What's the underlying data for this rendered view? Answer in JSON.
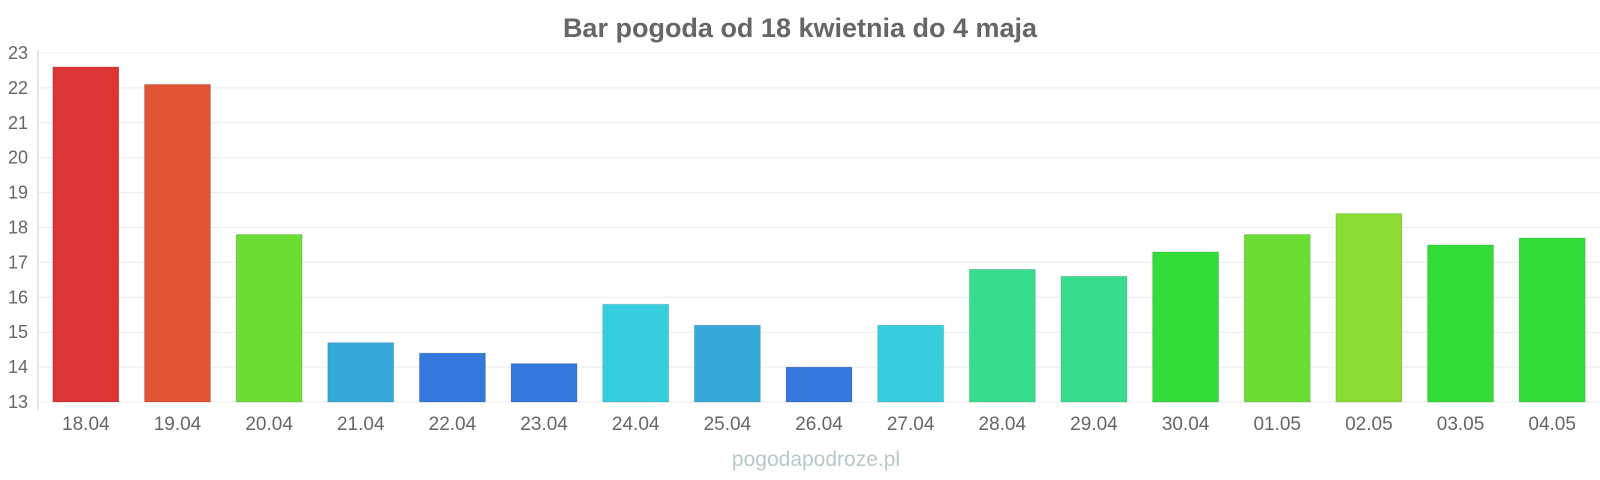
{
  "chart_data": {
    "type": "bar",
    "title": "Bar pogoda od 18 kwietnia do 4 maja",
    "xlabel": "",
    "ylabel": "",
    "ylim": [
      13,
      23
    ],
    "yticks": [
      "13",
      "14",
      "15",
      "16",
      "17",
      "18",
      "19",
      "20",
      "21",
      "22",
      "23"
    ],
    "grid": true,
    "legend": "none",
    "categories": [
      "18.04",
      "19.04",
      "20.04",
      "21.04",
      "22.04",
      "23.04",
      "24.04",
      "25.04",
      "26.04",
      "27.04",
      "28.04",
      "29.04",
      "30.04",
      "01.05",
      "02.05",
      "03.05",
      "04.05"
    ],
    "values": [
      22.6,
      22.1,
      17.8,
      14.7,
      14.4,
      14.1,
      15.8,
      15.2,
      14.0,
      15.2,
      16.8,
      16.6,
      17.3,
      17.8,
      18.4,
      17.5,
      17.7
    ],
    "colors": [
      "#dc3535",
      "#e05436",
      "#6ade35",
      "#36a8da",
      "#3478dc",
      "#3478dc",
      "#36cddc",
      "#36a8da",
      "#3478dc",
      "#36cddc",
      "#37dc8e",
      "#37dc8e",
      "#33dc38",
      "#6ade35",
      "#8adc35",
      "#33dc38",
      "#33dc38"
    ]
  },
  "credit": "pogodapodroze.pl"
}
